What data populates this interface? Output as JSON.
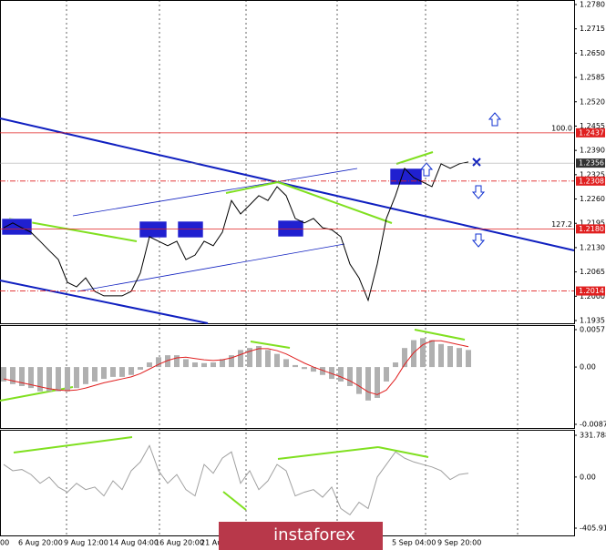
{
  "chart_data": {
    "type": "line",
    "color": "#000000",
    "categories": [
      "00",
      null,
      "6 Aug 20:00",
      null,
      null,
      null,
      null,
      "9 Aug 12:00",
      null,
      null,
      null,
      null,
      "14 Aug 04:00",
      null,
      null,
      null,
      null,
      "16 Aug 20:00",
      null,
      null,
      null,
      null,
      "21 Au",
      null,
      null,
      null,
      null,
      null,
      null,
      null,
      null,
      null,
      null,
      null,
      null,
      null,
      null,
      null,
      null,
      null,
      null,
      null,
      null,
      "5 Sep 04:00",
      null,
      null,
      null,
      null,
      "9 Sep 20:00",
      null,
      null,
      null
    ],
    "values": [
      1.2183,
      1.2196,
      1.2183,
      1.2171,
      1.2147,
      1.2122,
      1.2098,
      1.2037,
      1.2025,
      1.2049,
      1.2013,
      1.2001,
      1.2001,
      1.2001,
      1.2013,
      1.2062,
      1.2159,
      1.2147,
      1.2135,
      1.2147,
      1.2098,
      1.211,
      1.2147,
      1.2135,
      1.2171,
      1.2256,
      1.222,
      1.2244,
      1.2269,
      1.2256,
      1.2293,
      1.2269,
      1.2208,
      1.2196,
      1.2208,
      1.2183,
      1.2178,
      1.2159,
      1.2086,
      1.2049,
      1.1989,
      1.2086,
      1.2208,
      1.2269,
      1.2342,
      1.2317,
      1.2305,
      1.2293,
      1.2354,
      1.2342,
      1.2354,
      1.2359
    ],
    "ylim": [
      1.1935,
      1.278
    ],
    "yticks": [
      {
        "value": 1.278,
        "label": "1.2780"
      },
      1.2715,
      {
        "value": 1.265,
        "label": "1.2650"
      },
      1.2585,
      {
        "value": 1.252,
        "label": "1.2520"
      },
      1.2455,
      {
        "value": 1.239,
        "label": "1.2390"
      },
      1.2325,
      {
        "value": 1.226,
        "label": "1.2260"
      },
      1.2195,
      {
        "value": 1.213,
        "label": "1.2130"
      },
      1.2065,
      {
        "value": 1.2,
        "label": "1.2000"
      },
      1.1935
    ],
    "levels": [
      1.2437,
      1.2308,
      {
        "value": 1.218,
        "label": "1.2180"
      },
      1.2014
    ],
    "level_color": "#e02020",
    "level_annotations": [
      "100.0",
      null,
      "127.2",
      null
    ],
    "current_price": 1.2356,
    "macd": {
      "color": "#b0b0b0",
      "signal_color": "#e02020",
      "histogram": [
        -0.0022,
        -0.0026,
        -0.0029,
        -0.0032,
        -0.0037,
        -0.0037,
        -0.0037,
        -0.0037,
        -0.0032,
        -0.0026,
        -0.0022,
        -0.0018,
        -0.0015,
        -0.0015,
        -0.0012,
        -0.0004,
        0.0007,
        0.0015,
        0.0018,
        0.0018,
        0.0012,
        0.0007,
        0.0006,
        0.0007,
        0.0012,
        0.0018,
        0.0026,
        0.0029,
        0.0032,
        0.0026,
        0.002,
        0.0012,
        0.0003,
        -0.0003,
        -0.0007,
        -0.0012,
        -0.0018,
        -0.0022,
        -0.0029,
        -0.0041,
        -0.0051,
        -0.0047,
        -0.0022,
        0.0007,
        0.0029,
        0.0041,
        0.0044,
        0.0041,
        0.0035,
        0.0032,
        0.0029,
        0.0026
      ],
      "signal": [
        -0.0018,
        -0.0021,
        -0.0024,
        -0.0027,
        -0.003,
        -0.0033,
        -0.0035,
        -0.0036,
        -0.0035,
        -0.0032,
        -0.0028,
        -0.0024,
        -0.0021,
        -0.0018,
        -0.0015,
        -0.001,
        -0.0003,
        0.0004,
        0.001,
        0.0014,
        0.0015,
        0.0013,
        0.0011,
        0.001,
        0.0011,
        0.0014,
        0.0019,
        0.0024,
        0.0028,
        0.0028,
        0.0025,
        0.002,
        0.0013,
        0.0006,
        0.0,
        -0.0005,
        -0.001,
        -0.0015,
        -0.0021,
        -0.0029,
        -0.0038,
        -0.0042,
        -0.0035,
        -0.0018,
        0.0004,
        0.0022,
        0.0034,
        0.004,
        0.004,
        0.0037,
        0.0034,
        0.0031
      ],
      "ylim": [
        -0.00873,
        0.0057
      ],
      "yticks": [
        0.0057,
        {
          "value": 0,
          "label": "0.00"
        },
        -0.00873
      ]
    },
    "cci": {
      "color": "#a0a0a0",
      "values": [
        100,
        50,
        60,
        20,
        -50,
        0,
        -80,
        -120,
        -50,
        -100,
        -80,
        -150,
        -30,
        -100,
        50,
        120,
        250,
        50,
        -50,
        20,
        -100,
        -150,
        100,
        30,
        150,
        200,
        -50,
        50,
        -100,
        -30,
        100,
        50,
        -150,
        -120,
        -100,
        -160,
        -80,
        -250,
        -300,
        -200,
        -250,
        0,
        100,
        200,
        150,
        120,
        100,
        80,
        50,
        -20,
        20,
        30
      ],
      "ylim": [
        -405.918,
        331.7881
      ],
      "yticks": [
        331.7881,
        {
          "value": 0,
          "label": "0.00"
        },
        -405.918
      ]
    },
    "watermark": "instaforex"
  }
}
